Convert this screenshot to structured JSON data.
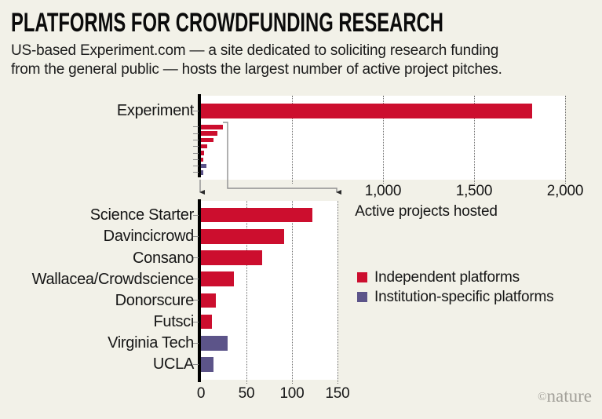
{
  "header": {
    "title": "PLATFORMS FOR CROWDFUNDING RESEARCH",
    "subtitle": "US-based Experiment.com — a site dedicated to soliciting research funding\nfrom the general public — hosts the largest number of active project pitches."
  },
  "colors": {
    "background": "#f2f1e8",
    "plot_background": "#ffffff",
    "independent": "#cc0e2e",
    "institution": "#5c5489",
    "axis": "#000000",
    "tick": "#8f8f8f",
    "callout_line": "#8f8f8f",
    "text": "#161616",
    "logo": "#a3a19a"
  },
  "chart_data": [
    {
      "id": "overview",
      "type": "bar",
      "orientation": "horizontal",
      "xlabel": "Active projects hosted",
      "xlim": [
        0,
        2000
      ],
      "grid": "dotted-vertical",
      "xticks": [
        {
          "value": 500,
          "label": ""
        },
        {
          "value": 1000,
          "label": "1,000"
        },
        {
          "value": 1500,
          "label": "1,500"
        },
        {
          "value": 2000,
          "label": "2,000"
        }
      ],
      "bars": [
        {
          "label": "Experiment",
          "value": 1820,
          "group": "independent",
          "show_label": true
        },
        {
          "label": "Science Starter",
          "value": 122,
          "group": "independent",
          "show_label": false
        },
        {
          "label": "Davincicrowd",
          "value": 91,
          "group": "independent",
          "show_label": false
        },
        {
          "label": "Consano",
          "value": 67,
          "group": "independent",
          "show_label": false
        },
        {
          "label": "Wallacea/Crowdscience",
          "value": 36,
          "group": "independent",
          "show_label": false
        },
        {
          "label": "Donorscure",
          "value": 16,
          "group": "independent",
          "show_label": false
        },
        {
          "label": "Futsci",
          "value": 12,
          "group": "independent",
          "show_label": false
        },
        {
          "label": "Virginia Tech",
          "value": 29,
          "group": "institution",
          "show_label": false
        },
        {
          "label": "UCLA",
          "value": 14,
          "group": "institution",
          "show_label": false
        }
      ]
    },
    {
      "id": "detail",
      "type": "bar",
      "orientation": "horizontal",
      "xlabel": "",
      "xlim": [
        0,
        150
      ],
      "grid": "dotted-vertical",
      "xticks": [
        {
          "value": 0,
          "label": "0"
        },
        {
          "value": 50,
          "label": "50"
        },
        {
          "value": 100,
          "label": "100"
        },
        {
          "value": 150,
          "label": "150"
        }
      ],
      "bars": [
        {
          "label": "Science Starter",
          "value": 122,
          "group": "independent",
          "show_label": true
        },
        {
          "label": "Davincicrowd",
          "value": 91,
          "group": "independent",
          "show_label": true
        },
        {
          "label": "Consano",
          "value": 67,
          "group": "independent",
          "show_label": true
        },
        {
          "label": "Wallacea/Crowdscience",
          "value": 36,
          "group": "independent",
          "show_label": true
        },
        {
          "label": "Donorscure",
          "value": 16,
          "group": "independent",
          "show_label": true
        },
        {
          "label": "Futsci",
          "value": 12,
          "group": "independent",
          "show_label": true
        },
        {
          "label": "Virginia Tech",
          "value": 29,
          "group": "institution",
          "show_label": true
        },
        {
          "label": "UCLA",
          "value": 14,
          "group": "institution",
          "show_label": true
        }
      ]
    }
  ],
  "legend": {
    "items": [
      {
        "label": "Independent platforms",
        "group": "independent"
      },
      {
        "label": "Institution-specific platforms",
        "group": "institution"
      }
    ]
  },
  "branding": {
    "logo_symbol": "©",
    "logo_text": "nature"
  }
}
